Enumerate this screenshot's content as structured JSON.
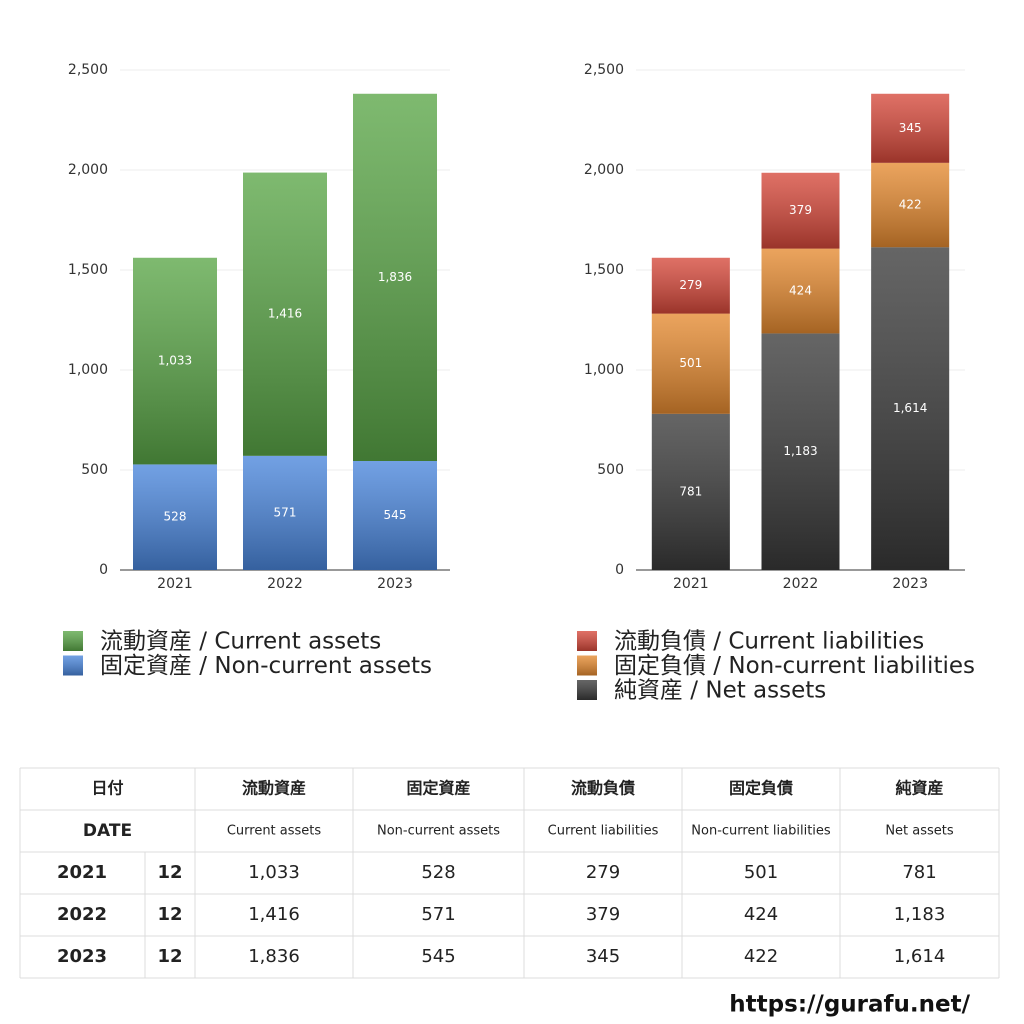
{
  "chart_data": [
    {
      "type": "bar",
      "stacked": true,
      "categories": [
        "2021",
        "2022",
        "2023"
      ],
      "series": [
        {
          "name": "固定資産 / Non-current assets",
          "color": "#4a86dc",
          "values": [
            528,
            571,
            545
          ],
          "value_labels": [
            "528",
            "571",
            "545"
          ]
        },
        {
          "name": "流動資産 / Current assets",
          "color": "#5aa647",
          "values": [
            1033,
            1416,
            1836
          ],
          "value_labels": [
            "1,033",
            "1,416",
            "1,836"
          ]
        }
      ],
      "ylim": [
        0,
        2500
      ],
      "yticks": [
        0,
        500,
        {
          "value": 1000,
          "label": "1,000"
        },
        {
          "value": 1500,
          "label": "1,500"
        },
        {
          "value": 2000,
          "label": "2,000"
        },
        {
          "value": 2500,
          "label": "2,500"
        }
      ],
      "grid": true
    },
    {
      "type": "bar",
      "stacked": true,
      "categories": [
        "2021",
        "2022",
        "2023"
      ],
      "series": [
        {
          "name": "純資産 / Net assets",
          "color": "#3a3a3a",
          "values": [
            781,
            1183,
            1614
          ],
          "value_labels": [
            "781",
            "1,183",
            "1,614"
          ]
        },
        {
          "name": "固定負債 / Non-current liabilities",
          "color": "#e58a30",
          "values": [
            501,
            424,
            422
          ],
          "value_labels": [
            "501",
            "424",
            "422"
          ]
        },
        {
          "name": "流動負債 / Current liabilities",
          "color": "#d6483a",
          "values": [
            279,
            379,
            345
          ],
          "value_labels": [
            "279",
            "379",
            "345"
          ]
        }
      ],
      "ylim": [
        0,
        2500
      ],
      "yticks": [
        0,
        500,
        {
          "value": 1000,
          "label": "1,000"
        },
        {
          "value": 1500,
          "label": "1,500"
        },
        {
          "value": 2000,
          "label": "2,000"
        },
        {
          "value": 2500,
          "label": "2,500"
        }
      ],
      "grid": true
    }
  ],
  "table": {
    "header": [
      [
        "日付",
        "流動資産",
        "固定資産",
        "流動負債",
        "固定負債",
        "純資産"
      ],
      [
        "DATE",
        "Current assets",
        "Non-current assets",
        "Current liabilities",
        "Non-current liabilities",
        "Net assets"
      ]
    ],
    "rows": [
      [
        "2021",
        "12",
        "1,033",
        "528",
        "279",
        "501",
        "781"
      ],
      [
        "2022",
        "12",
        "1,416",
        "571",
        "379",
        "424",
        "1,183"
      ],
      [
        "2023",
        "12",
        "1,836",
        "545",
        "345",
        "422",
        "1,614"
      ]
    ]
  },
  "footer": "https://gurafu.net/"
}
